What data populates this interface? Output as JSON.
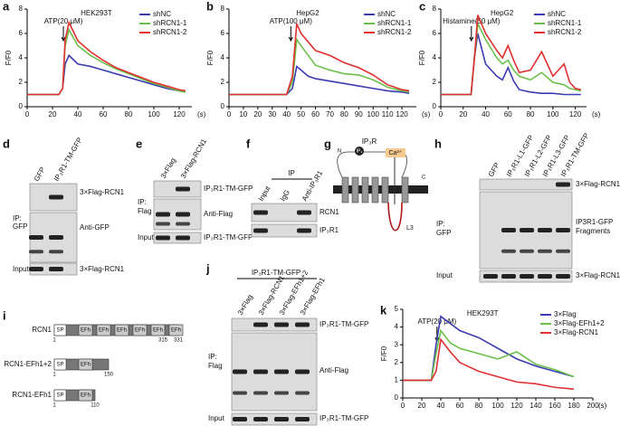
{
  "chart_data": [
    {
      "type": "line",
      "panel": "a",
      "title": "HEK293T",
      "annotation": "ATP(20 μM)",
      "y_label": "F/F0",
      "x_unit": "(s)",
      "x": [
        0,
        10,
        20,
        25,
        28,
        30,
        33,
        40,
        50,
        60,
        70,
        80,
        90,
        100,
        110,
        120,
        125
      ],
      "xlim": [
        0,
        130
      ],
      "xticks": [
        0,
        20,
        40,
        60,
        80,
        100,
        120
      ],
      "ylim": [
        0,
        8
      ],
      "yticks": [
        0,
        2,
        4,
        6,
        8
      ],
      "series": [
        {
          "name": "shNC",
          "color": "#3b3bb3",
          "values": [
            1,
            1,
            1,
            1,
            1.5,
            3.5,
            4.2,
            3.5,
            3.3,
            3.0,
            2.7,
            2.4,
            2.1,
            1.8,
            1.5,
            1.3,
            1.2
          ]
        },
        {
          "name": "shRCN1-1",
          "color": "#6cc04a",
          "values": [
            1,
            1,
            1,
            1,
            1.5,
            5,
            6.3,
            5,
            4.2,
            3.6,
            3.1,
            2.7,
            2.3,
            1.9,
            1.6,
            1.3,
            1.2
          ]
        },
        {
          "name": "shRCN1-2",
          "color": "#e03030",
          "values": [
            1,
            1,
            1,
            1,
            1.5,
            5.5,
            6.9,
            5.4,
            4.5,
            3.8,
            3.2,
            2.8,
            2.4,
            2.0,
            1.7,
            1.4,
            1.3
          ]
        }
      ]
    },
    {
      "type": "line",
      "panel": "b",
      "title": "HepG2",
      "annotation": "ATP(100 μM)",
      "y_label": "F/F0",
      "x_unit": "(s)",
      "x": [
        0,
        10,
        20,
        30,
        40,
        44,
        47,
        50,
        55,
        60,
        70,
        80,
        90,
        100,
        110,
        120,
        125
      ],
      "xlim": [
        0,
        130
      ],
      "xticks": [
        0,
        10,
        20,
        30,
        40,
        50,
        60,
        70,
        80,
        90,
        100,
        110,
        120
      ],
      "ylim": [
        0,
        8
      ],
      "yticks": [
        0,
        2,
        4,
        6,
        8
      ],
      "series": [
        {
          "name": "shNC",
          "color": "#3b3bb3",
          "values": [
            1,
            1,
            1,
            1,
            1,
            1.5,
            3.3,
            3,
            2.5,
            2.3,
            2.1,
            1.9,
            1.7,
            1.5,
            1.3,
            1.2,
            1.1
          ]
        },
        {
          "name": "shRCN1-1",
          "color": "#6cc04a",
          "values": [
            1,
            1,
            1,
            1,
            1,
            2,
            5.5,
            5,
            4.2,
            3.4,
            3,
            2.7,
            2.6,
            2.2,
            1.6,
            1.3,
            1.2
          ]
        },
        {
          "name": "shRCN1-2",
          "color": "#e03030",
          "values": [
            1,
            1,
            1,
            1,
            1,
            2.5,
            6.8,
            6,
            5.3,
            4.6,
            4.2,
            3.6,
            3.2,
            2.6,
            1.8,
            1.4,
            1.3
          ]
        }
      ]
    },
    {
      "type": "line",
      "panel": "c",
      "title": "HepG2",
      "annotation": "Histamine(50 μM)",
      "y_label": "F/F0",
      "x_unit": "(s)",
      "x": [
        0,
        10,
        20,
        27,
        30,
        33,
        40,
        50,
        55,
        60,
        65,
        70,
        80,
        90,
        100,
        110,
        115,
        120,
        125
      ],
      "xlim": [
        0,
        130
      ],
      "xticks": [
        0,
        20,
        40,
        60,
        80,
        100,
        120
      ],
      "ylim": [
        0,
        8
      ],
      "yticks": [
        0,
        2,
        4,
        6,
        8
      ],
      "series": [
        {
          "name": "shNC",
          "color": "#3b3bb3",
          "values": [
            1,
            1,
            1,
            1,
            4,
            6,
            3.5,
            2.5,
            2.2,
            3.2,
            2.1,
            1.4,
            1.2,
            1.1,
            1.1,
            1,
            1,
            1,
            1
          ]
        },
        {
          "name": "shRCN1-1",
          "color": "#6cc04a",
          "values": [
            1,
            1,
            1,
            1,
            4,
            6.8,
            5.5,
            4,
            3.5,
            3.8,
            3,
            2.5,
            2.2,
            2.8,
            2,
            1.8,
            1.5,
            1.4,
            1.3
          ]
        },
        {
          "name": "shRCN1-2",
          "color": "#e03030",
          "values": [
            1,
            1,
            1,
            1,
            4,
            7.5,
            6,
            4.6,
            4,
            5,
            3.8,
            2.8,
            3,
            4.5,
            2.5,
            3.5,
            2,
            1.5,
            1.4
          ]
        }
      ]
    },
    {
      "type": "line",
      "panel": "k",
      "title": "HEK293T",
      "annotation": "ATP(20 μM)",
      "y_label": "F/F0",
      "x_unit": "(s)",
      "x": [
        0,
        10,
        20,
        30,
        35,
        40,
        50,
        60,
        80,
        100,
        120,
        140,
        160,
        180
      ],
      "xlim": [
        0,
        200
      ],
      "xticks": [
        0,
        20,
        40,
        60,
        80,
        100,
        120,
        140,
        160,
        180,
        200
      ],
      "ylim": [
        0,
        5
      ],
      "yticks": [
        0,
        1,
        2,
        3,
        4,
        5
      ],
      "series": [
        {
          "name": "3×Flag",
          "color": "#3b3bb3",
          "values": [
            1,
            1,
            1,
            1,
            3,
            4.6,
            4.2,
            3.8,
            3.4,
            2.8,
            2.2,
            1.8,
            1.5,
            1.2
          ]
        },
        {
          "name": "3×Flag-EFh1+2",
          "color": "#6cc04a",
          "values": [
            1,
            1,
            1,
            1,
            2.5,
            3.8,
            3.1,
            2.8,
            2.5,
            2.2,
            2.6,
            1.9,
            1.6,
            1.2
          ]
        },
        {
          "name": "3×Flag-RCN1",
          "color": "#e03030",
          "values": [
            1,
            1,
            1,
            1,
            1.5,
            3.3,
            2.6,
            2.0,
            1.5,
            1.2,
            0.9,
            0.8,
            0.6,
            0.5
          ]
        }
      ]
    }
  ],
  "blots": [
    {
      "panel": "d",
      "lanes": [
        "GFP",
        "IP₃R1-TM-GFP"
      ],
      "right": [
        "3×Flag-RCN1",
        "Anti-GFP",
        "3×Flag-RCN1"
      ],
      "left": [
        "IP:",
        "GFP",
        "Input"
      ]
    },
    {
      "panel": "e",
      "lanes": [
        "3×Flag",
        "3×Flag-RCN1"
      ],
      "right": [
        "IP₃R1-TM-GFP",
        "Anti-Flag",
        "IP₃R1-TM-GFP"
      ],
      "left": [
        "IP:",
        "Flag",
        "Input"
      ]
    },
    {
      "panel": "f",
      "header": "IP",
      "lanes": [
        "Input",
        "IgG",
        "Anti-IP₃R1"
      ],
      "right": [
        "RCN1",
        "IP₃R1"
      ],
      "left": []
    },
    {
      "panel": "h",
      "lanes": [
        "GFP",
        "IP₃R1-L1-GFP",
        "IP₃R1-L2-GFP",
        "IP₃R1-L3-GFP",
        "IP₃R1-TM-GFP"
      ],
      "right": [
        "3×Flag-RCN1",
        "IP3R1-GFP",
        "Fragments",
        "3×Flag-RCN1"
      ],
      "left": [
        "IP:",
        "GFP",
        "Input"
      ]
    },
    {
      "panel": "j",
      "header": "IP₃R1-TM-GFP",
      "lanes": [
        "3×Flag",
        "3×Flag-RCN1",
        "3×Flag-EFh1+2",
        "3×Flag-EFh1"
      ],
      "right": [
        "IP₃R1-TM-GFP",
        "Anti-Flag",
        "IP₃R1-TM-GFP"
      ],
      "left": [
        "IP:",
        "Flag",
        "Input"
      ]
    }
  ],
  "diagram": {
    "panel": "g",
    "receptor": "IP₃R",
    "n_term": "N",
    "ligand": "IP₃",
    "ion": "Ca²⁺",
    "c_term": "C",
    "loop": "L3"
  },
  "domains": {
    "panel": "i",
    "rows": [
      {
        "name": "RCN1",
        "parts": [
          "SP",
          "EFh",
          "EFh",
          "EFh",
          "EFh",
          "EFh",
          "EFh"
        ],
        "numbers": [
          "1",
          "315",
          "331"
        ]
      },
      {
        "name": "RCN1-EFh1+2",
        "parts": [
          "SP",
          "EFh"
        ],
        "numbers": [
          "1",
          "150"
        ]
      },
      {
        "name": "RCN1-EFh1",
        "parts": [
          "SP",
          "EFh"
        ],
        "numbers": [
          "1",
          "110"
        ]
      }
    ]
  }
}
